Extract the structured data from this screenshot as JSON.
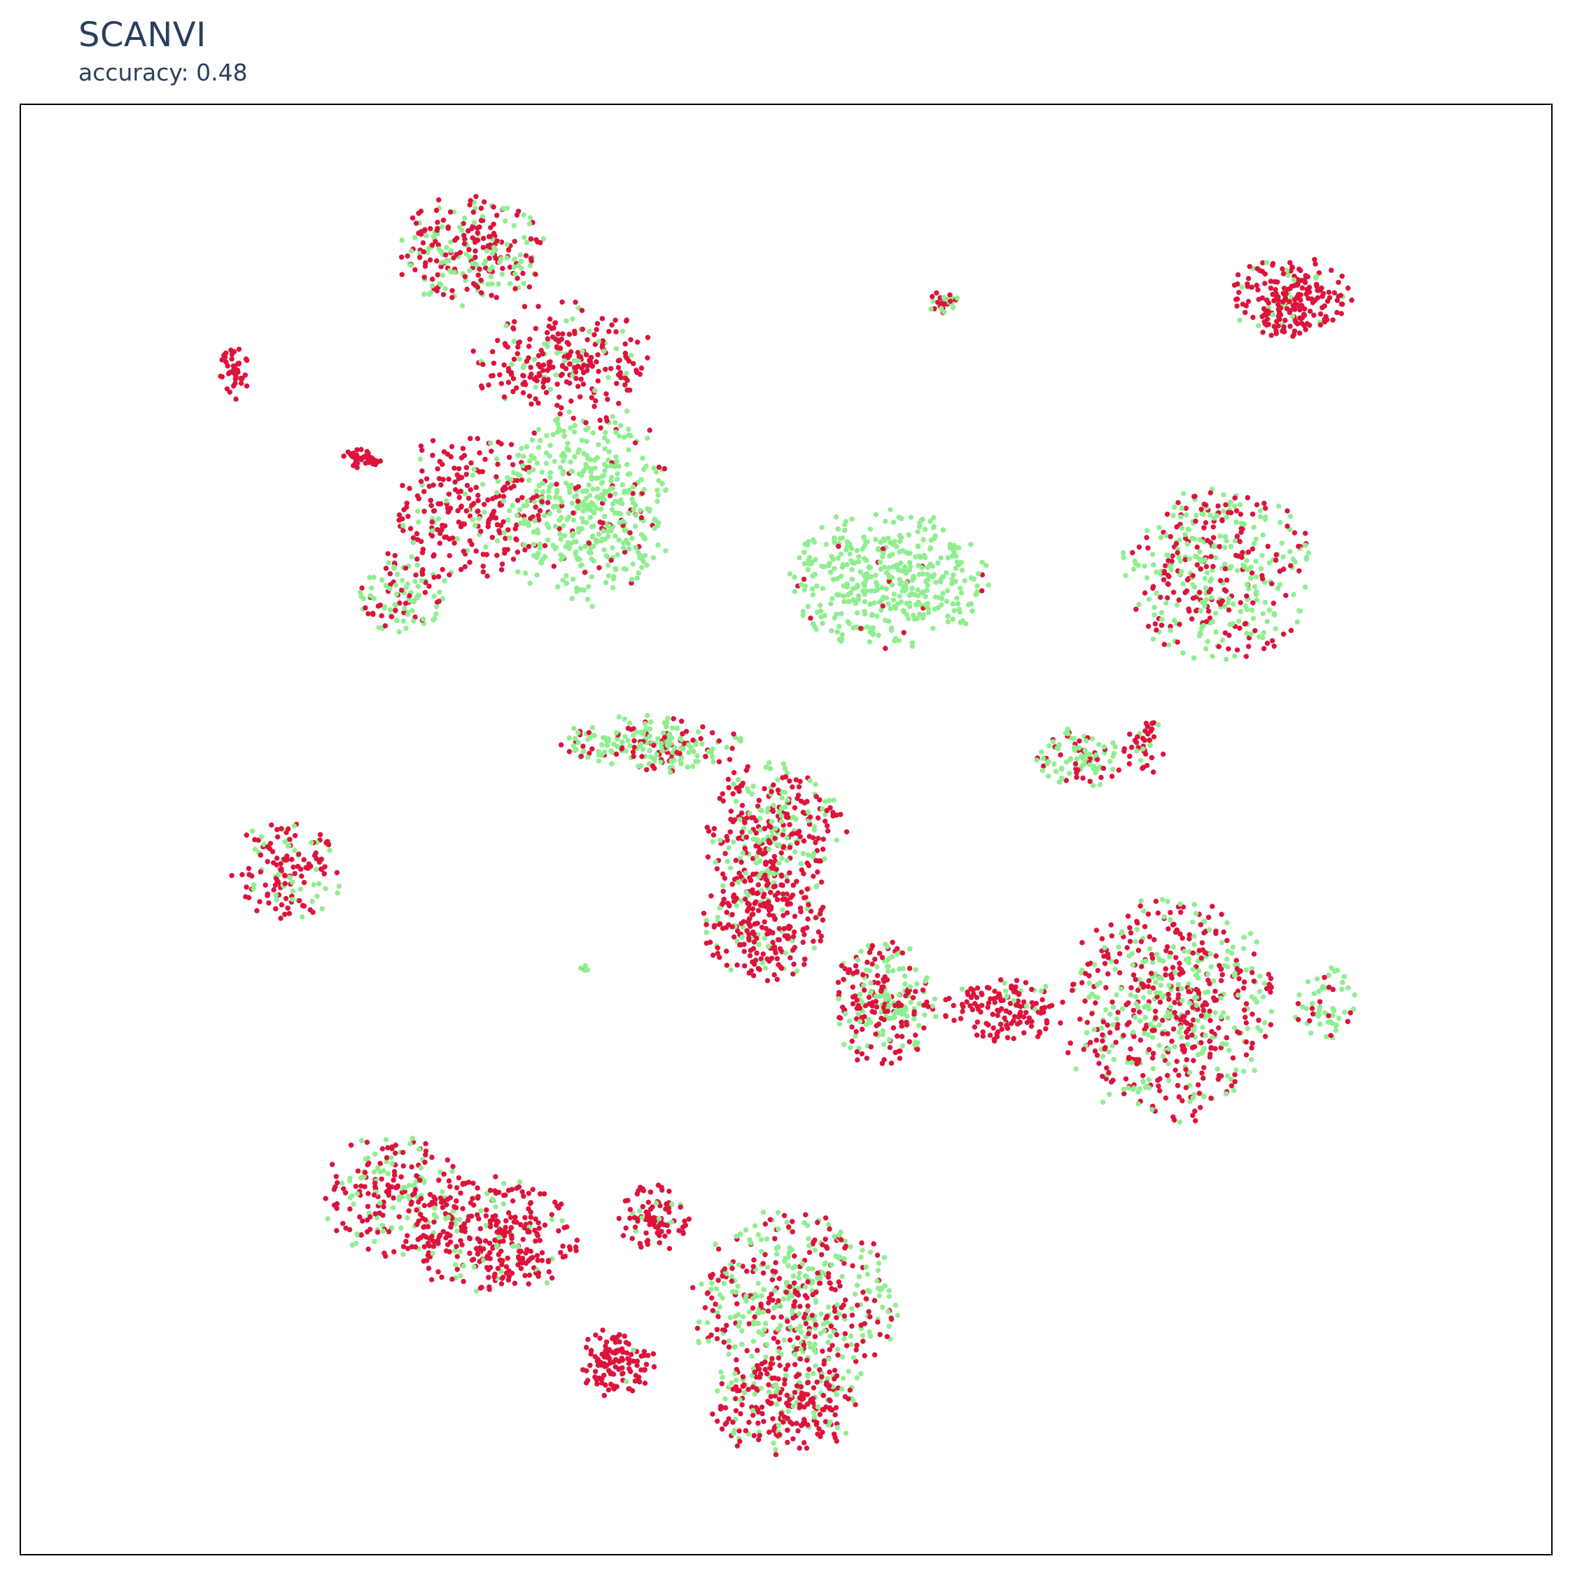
{
  "title": "SCANVI",
  "subtitle": "accuracy: 0.48",
  "colors": {
    "red": "#dc143c",
    "green": "#90ee90",
    "title": "#2a3f5f"
  },
  "chart_data": {
    "type": "scatter",
    "title": "SCANVI",
    "subtitle": "accuracy: 0.48",
    "xlabel": "",
    "ylabel": "",
    "grid": false,
    "legend": "none",
    "series": [
      {
        "color": "#dc143c"
      },
      {
        "color": "#90ee90"
      }
    ],
    "clusters": [
      {
        "cx": 465,
        "cy": 250,
        "rx": 75,
        "ry": 55,
        "red": 0.55,
        "n": 260,
        "seed": 1
      },
      {
        "cx": 560,
        "cy": 355,
        "rx": 90,
        "ry": 55,
        "red": 0.85,
        "n": 260,
        "seed": 2
      },
      {
        "cx": 470,
        "cy": 505,
        "rx": 80,
        "ry": 75,
        "red": 0.85,
        "n": 250,
        "seed": 3
      },
      {
        "cx": 585,
        "cy": 500,
        "rx": 85,
        "ry": 100,
        "red": 0.12,
        "n": 480,
        "seed": 4
      },
      {
        "cx": 395,
        "cy": 590,
        "rx": 45,
        "ry": 40,
        "red": 0.35,
        "n": 110,
        "seed": 5
      },
      {
        "cx": 232,
        "cy": 370,
        "rx": 14,
        "ry": 30,
        "red": 1.0,
        "n": 40,
        "seed": 6
      },
      {
        "cx": 360,
        "cy": 455,
        "rx": 20,
        "ry": 12,
        "red": 1.0,
        "n": 35,
        "seed": 7
      },
      {
        "cx": 940,
        "cy": 300,
        "rx": 15,
        "ry": 12,
        "red": 0.6,
        "n": 30,
        "seed": 8
      },
      {
        "cx": 1285,
        "cy": 295,
        "rx": 60,
        "ry": 40,
        "red": 0.88,
        "n": 220,
        "seed": 9
      },
      {
        "cx": 885,
        "cy": 575,
        "rx": 95,
        "ry": 70,
        "red": 0.03,
        "n": 420,
        "seed": 10
      },
      {
        "cx": 1215,
        "cy": 570,
        "rx": 95,
        "ry": 85,
        "red": 0.45,
        "n": 420,
        "seed": 11
      },
      {
        "cx": 1075,
        "cy": 755,
        "rx": 45,
        "ry": 30,
        "red": 0.3,
        "n": 100,
        "seed": 12
      },
      {
        "cx": 1140,
        "cy": 745,
        "rx": 20,
        "ry": 35,
        "red": 0.9,
        "n": 40,
        "seed": 13
      },
      {
        "cx": 285,
        "cy": 865,
        "rx": 55,
        "ry": 50,
        "red": 0.7,
        "n": 150,
        "seed": 14
      },
      {
        "cx": 650,
        "cy": 740,
        "rx": 90,
        "ry": 28,
        "red": 0.35,
        "n": 220,
        "seed": 15
      },
      {
        "cx": 770,
        "cy": 830,
        "rx": 70,
        "ry": 70,
        "red": 0.65,
        "n": 330,
        "seed": 16
      },
      {
        "cx": 760,
        "cy": 920,
        "rx": 60,
        "ry": 55,
        "red": 0.8,
        "n": 240,
        "seed": 17
      },
      {
        "cx": 880,
        "cy": 1000,
        "rx": 50,
        "ry": 65,
        "red": 0.55,
        "n": 250,
        "seed": 18
      },
      {
        "cx": 1000,
        "cy": 1005,
        "rx": 60,
        "ry": 30,
        "red": 0.92,
        "n": 140,
        "seed": 19
      },
      {
        "cx": 1165,
        "cy": 1005,
        "rx": 105,
        "ry": 110,
        "red": 0.55,
        "n": 620,
        "seed": 20
      },
      {
        "cx": 1320,
        "cy": 1000,
        "rx": 30,
        "ry": 40,
        "red": 0.2,
        "n": 60,
        "seed": 21
      },
      {
        "cx": 580,
        "cy": 965,
        "rx": 8,
        "ry": 6,
        "red": 0.5,
        "n": 6,
        "seed": 22
      },
      {
        "cx": 390,
        "cy": 1190,
        "rx": 70,
        "ry": 60,
        "red": 0.6,
        "n": 220,
        "seed": 23
      },
      {
        "cx": 490,
        "cy": 1230,
        "rx": 85,
        "ry": 60,
        "red": 0.85,
        "n": 320,
        "seed": 24
      },
      {
        "cx": 650,
        "cy": 1210,
        "rx": 35,
        "ry": 35,
        "red": 0.9,
        "n": 90,
        "seed": 25
      },
      {
        "cx": 610,
        "cy": 1355,
        "rx": 40,
        "ry": 35,
        "red": 0.97,
        "n": 120,
        "seed": 26
      },
      {
        "cx": 790,
        "cy": 1300,
        "rx": 100,
        "ry": 95,
        "red": 0.45,
        "n": 540,
        "seed": 27
      },
      {
        "cx": 780,
        "cy": 1400,
        "rx": 70,
        "ry": 50,
        "red": 0.75,
        "n": 220,
        "seed": 28
      }
    ]
  }
}
